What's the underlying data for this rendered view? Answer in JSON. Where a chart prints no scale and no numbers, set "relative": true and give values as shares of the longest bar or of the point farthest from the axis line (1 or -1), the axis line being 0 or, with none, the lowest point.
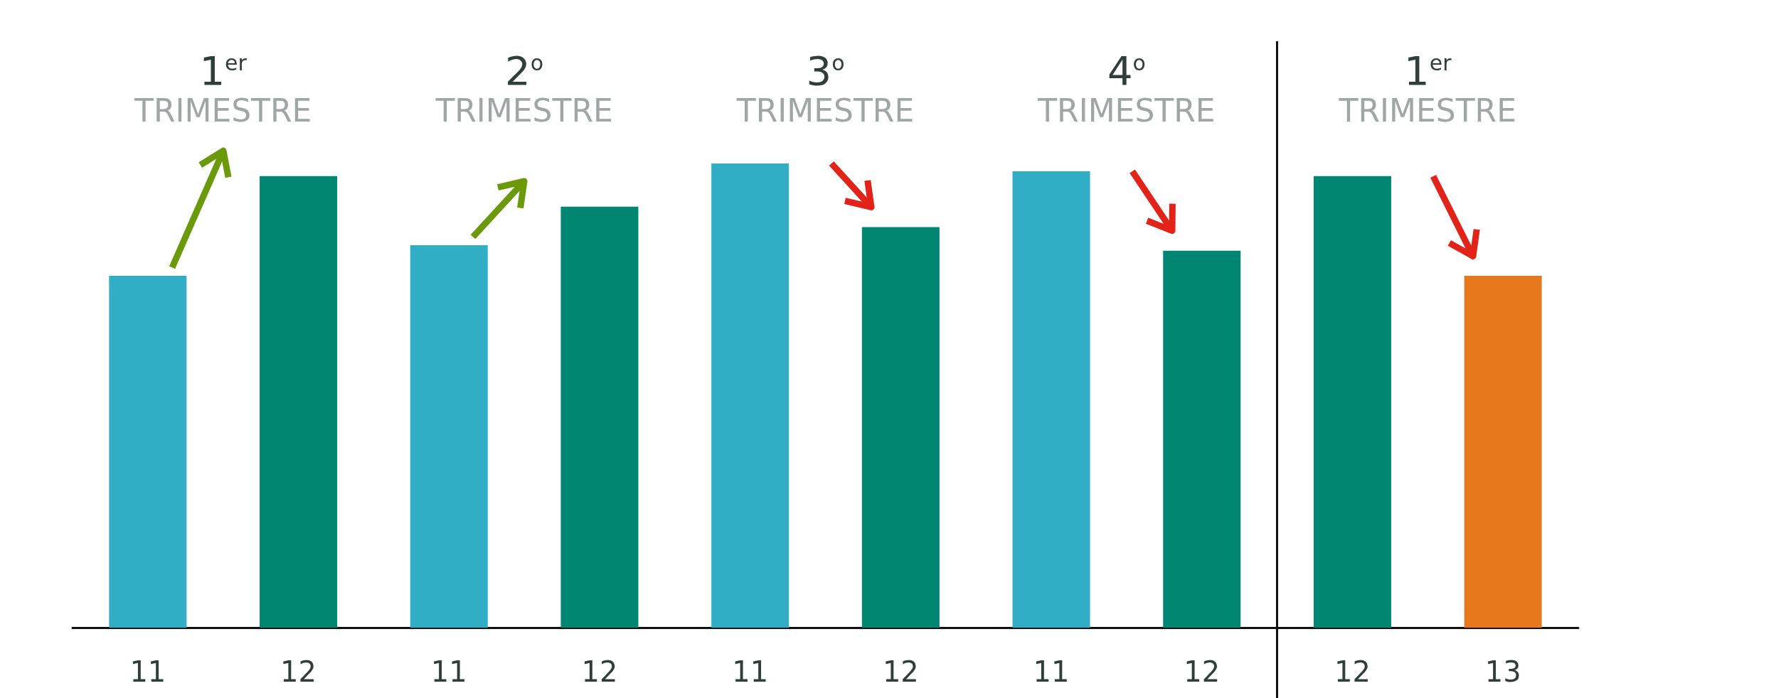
{
  "chart_data": {
    "type": "bar",
    "relative": true,
    "categories": [
      "11",
      "12",
      "11",
      "12",
      "11",
      "12",
      "11",
      "12",
      "12",
      "13"
    ],
    "values": [
      0.758,
      0.973,
      0.824,
      0.907,
      1.0,
      0.863,
      0.983,
      0.812,
      0.973,
      0.758
    ],
    "colors": [
      "#32adc6",
      "#008673",
      "#32adc6",
      "#008673",
      "#32adc6",
      "#008673",
      "#32adc6",
      "#008673",
      "#008673",
      "#e8781d"
    ],
    "annotations": [
      "1$^{er}$\nTRIMESTRE",
      "2$^{o}$\nTRIMESTRE",
      "3$^{o}$\nTRIMESTRE",
      "4$^{o}$\nTRIMESTRE",
      "1$^{er}$\nTRIMESTRE"
    ],
    "data_labels": false
  }
}
